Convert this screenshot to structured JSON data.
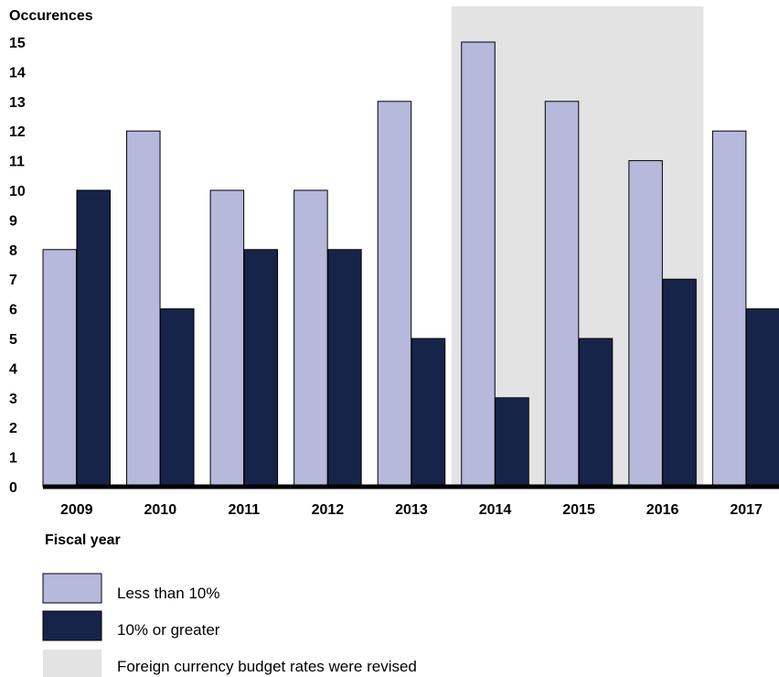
{
  "chart_data": {
    "type": "bar",
    "ylabel": "Occurences",
    "xlabel": "Fiscal year",
    "categories": [
      "2009",
      "2010",
      "2011",
      "2012",
      "2013",
      "2014",
      "2015",
      "2016",
      "2017"
    ],
    "series": [
      {
        "name": "Less than 10%",
        "color": "#b6b8dc",
        "values": [
          8,
          12,
          10,
          10,
          13,
          15,
          13,
          11,
          12
        ]
      },
      {
        "name": "10% or greater",
        "color": "#17244a",
        "values": [
          10,
          6,
          8,
          8,
          5,
          3,
          5,
          7,
          6
        ]
      }
    ],
    "ylim": [
      0,
      15
    ],
    "yticks": [
      0,
      1,
      2,
      3,
      4,
      5,
      6,
      7,
      8,
      9,
      10,
      11,
      12,
      13,
      14,
      15
    ],
    "grid": false,
    "highlight": {
      "label": "Foreign currency budget rates were revised",
      "color": "#e3e3e3",
      "categories": [
        "2014",
        "2015",
        "2016"
      ]
    },
    "legend_position": "bottom-left"
  }
}
